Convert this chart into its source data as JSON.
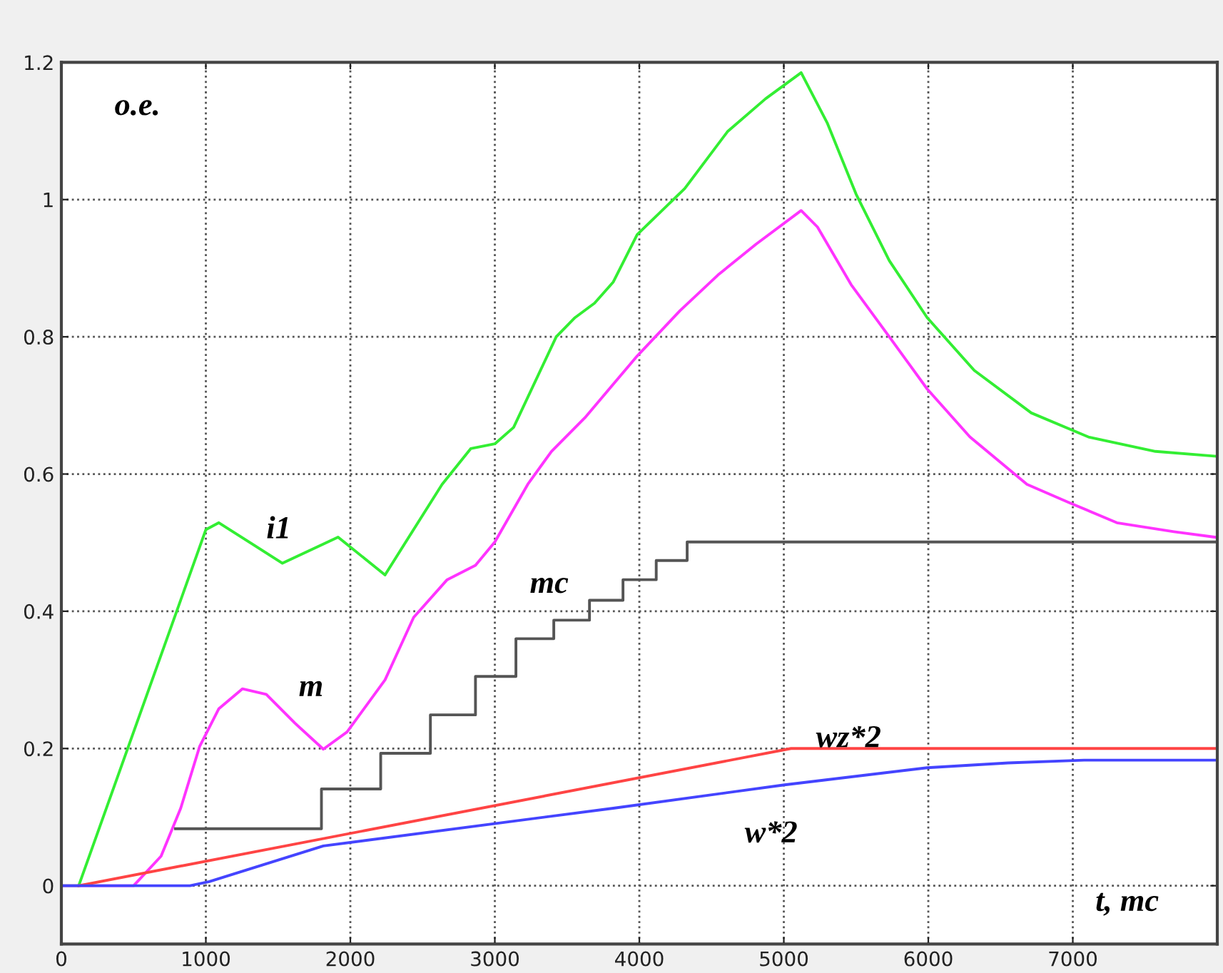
{
  "chart_data": {
    "type": "line",
    "xlabel": "t, mc",
    "ylabel": "o.e.",
    "xlim": [
      0,
      8000
    ],
    "ylim": [
      -0.085,
      1.2
    ],
    "xticks": [
      0,
      1000,
      2000,
      3000,
      4000,
      5000,
      6000,
      7000
    ],
    "yticks": [
      0,
      0.2,
      0.4,
      0.6,
      0.8,
      1,
      1.2
    ],
    "grid": true,
    "legend": false,
    "line_style": "solid",
    "marker": "none",
    "series": [
      {
        "name": "i1",
        "color": "#33ee33",
        "x": [
          0,
          120,
          1000,
          1090,
          1530,
          1915,
          2240,
          2635,
          2833,
          3000,
          3130,
          3425,
          3555,
          3690,
          3820,
          3985,
          4314,
          4610,
          4874,
          5120,
          5300,
          5500,
          5730,
          5992,
          6318,
          6713,
          7108,
          7572,
          7983
        ],
        "values": [
          0,
          0,
          0.519,
          0.529,
          0.47,
          0.508,
          0.453,
          0.585,
          0.637,
          0.644,
          0.668,
          0.8,
          0.828,
          0.849,
          0.88,
          0.949,
          1.016,
          1.099,
          1.147,
          1.185,
          1.112,
          1.008,
          0.911,
          0.828,
          0.751,
          0.689,
          0.654,
          0.633,
          0.626
        ]
      },
      {
        "name": "m",
        "color": "#ff33ff",
        "x": [
          0,
          500,
          690,
          826,
          957,
          1090,
          1254,
          1418,
          1616,
          1813,
          1977,
          2240,
          2438,
          2670,
          2866,
          3000,
          3228,
          3392,
          3623,
          3820,
          3985,
          4281,
          4544,
          4808,
          5120,
          5233,
          5466,
          5730,
          5992,
          6288,
          6683,
          6979,
          7305,
          7700,
          7983
        ],
        "values": [
          0,
          0,
          0.043,
          0.113,
          0.203,
          0.258,
          0.287,
          0.279,
          0.237,
          0.199,
          0.224,
          0.3,
          0.391,
          0.446,
          0.467,
          0.501,
          0.585,
          0.633,
          0.682,
          0.731,
          0.772,
          0.838,
          0.89,
          0.935,
          0.984,
          0.96,
          0.876,
          0.8,
          0.724,
          0.654,
          0.585,
          0.558,
          0.529,
          0.516,
          0.508
        ]
      },
      {
        "name": "mc",
        "type": "step",
        "color": "#555555",
        "x": [
          790,
          1800,
          2210,
          2554,
          2866,
          3146,
          3408,
          3655,
          3887,
          4117,
          4331,
          8000
        ],
        "values": [
          0.083,
          0.141,
          0.193,
          0.249,
          0.305,
          0.36,
          0.387,
          0.416,
          0.446,
          0.474,
          0.501,
          0.501
        ]
      },
      {
        "name": "wz*2",
        "color": "#ff4444",
        "x": [
          120,
          5050,
          8000
        ],
        "values": [
          0,
          0.2,
          0.2
        ]
      },
      {
        "name": "w*2",
        "color": "#4444ff",
        "x": [
          0,
          890,
          1024,
          1813,
          3820,
          5005,
          5992,
          6552,
          7078,
          7983
        ],
        "values": [
          0,
          0,
          0.006,
          0.058,
          0.113,
          0.147,
          0.172,
          0.179,
          0.183,
          0.183
        ]
      }
    ]
  }
}
